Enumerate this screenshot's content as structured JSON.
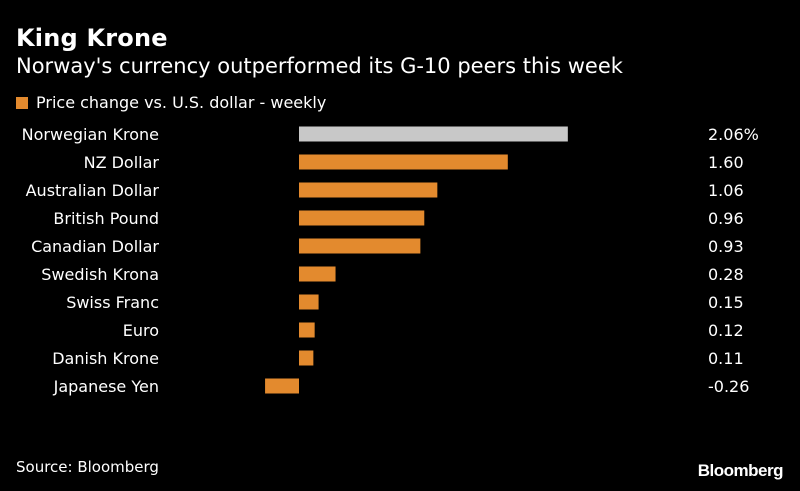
{
  "header": {
    "title": "King Krone",
    "subtitle": "Norway's currency outperformed its G-10 peers this week"
  },
  "legend": {
    "label": "Price change vs. U.S. dollar - weekly",
    "swatch_color": "#e38a2e"
  },
  "footer": {
    "source": "Source: Bloomberg",
    "brand": "Bloomberg"
  },
  "colors": {
    "background": "#000000",
    "bar": "#e38a2e",
    "highlight_bar": "#c8c8c8",
    "text": "#ffffff"
  },
  "chart_data": {
    "type": "bar",
    "orientation": "horizontal",
    "title": "King Krone",
    "subtitle": "Norway's currency outperformed its G-10 peers this week",
    "categories": [
      "Norwegian Krone",
      "NZ Dollar",
      "Australian Dollar",
      "British Pound",
      "Canadian Dollar",
      "Swedish Krona",
      "Swiss Franc",
      "Euro",
      "Danish Krone",
      "Japanese Yen"
    ],
    "series": [
      {
        "name": "Price change vs. U.S. dollar - weekly",
        "values": [
          2.06,
          1.6,
          1.06,
          0.96,
          0.93,
          0.28,
          0.15,
          0.12,
          0.11,
          -0.26
        ]
      }
    ],
    "value_labels": [
      "2.06%",
      "1.60",
      "1.06",
      "0.96",
      "0.93",
      "0.28",
      "0.15",
      "0.12",
      "0.11",
      "-0.26"
    ],
    "highlight_category": "Norwegian Krone",
    "xlim": [
      -0.26,
      2.06
    ],
    "grid": false,
    "legend_position": "top-left"
  }
}
